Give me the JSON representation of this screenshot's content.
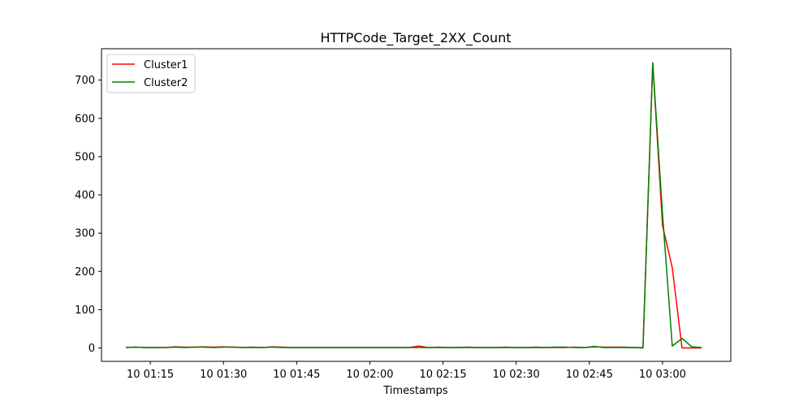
{
  "chart_data": {
    "type": "line",
    "title": "HTTPCode_Target_2XX_Count",
    "xlabel": "Timestamps",
    "ylabel": "",
    "x": [
      "01:10",
      "01:12",
      "01:14",
      "01:16",
      "01:18",
      "01:20",
      "01:22",
      "01:24",
      "01:26",
      "01:28",
      "01:30",
      "01:32",
      "01:34",
      "01:36",
      "01:38",
      "01:40",
      "01:42",
      "01:44",
      "01:46",
      "01:48",
      "01:50",
      "01:52",
      "01:54",
      "01:56",
      "01:58",
      "02:00",
      "02:02",
      "02:04",
      "02:06",
      "02:08",
      "02:10",
      "02:12",
      "02:14",
      "02:16",
      "02:18",
      "02:20",
      "02:22",
      "02:24",
      "02:26",
      "02:28",
      "02:30",
      "02:32",
      "02:34",
      "02:36",
      "02:38",
      "02:40",
      "02:42",
      "02:44",
      "02:46",
      "02:48",
      "02:50",
      "02:52",
      "02:54",
      "02:56",
      "02:58",
      "03:00",
      "03:02",
      "03:04",
      "03:06",
      "03:08"
    ],
    "xticks": [
      "10 01:15",
      "10 01:30",
      "10 01:45",
      "10 02:00",
      "10 02:15",
      "10 02:30",
      "10 02:45",
      "10 03:00"
    ],
    "yticks": [
      0,
      100,
      200,
      300,
      400,
      500,
      600,
      700
    ],
    "ylim": [
      -35,
      782
    ],
    "legend_position": "upper-left",
    "series": [
      {
        "name": "Cluster1",
        "color": "#ff0000",
        "values": [
          1,
          2,
          1,
          1,
          1,
          3,
          2,
          2,
          3,
          2,
          3,
          2,
          1,
          2,
          1,
          3,
          2,
          1,
          1,
          1,
          1,
          1,
          1,
          1,
          1,
          1,
          1,
          1,
          1,
          1,
          5,
          1,
          2,
          1,
          1,
          2,
          1,
          1,
          1,
          2,
          1,
          1,
          2,
          1,
          1,
          1,
          2,
          1,
          3,
          2,
          2,
          2,
          1,
          1,
          745,
          320,
          210,
          0,
          0,
          0
        ]
      },
      {
        "name": "Cluster2",
        "color": "#008000",
        "values": [
          1,
          2,
          1,
          1,
          1,
          2,
          1,
          2,
          2,
          1,
          2,
          2,
          1,
          1,
          1,
          2,
          1,
          1,
          1,
          1,
          1,
          1,
          1,
          1,
          1,
          1,
          1,
          1,
          1,
          1,
          1,
          1,
          1,
          1,
          1,
          1,
          1,
          1,
          1,
          1,
          1,
          1,
          1,
          1,
          2,
          2,
          1,
          1,
          4,
          1,
          1,
          1,
          1,
          0,
          745,
          350,
          5,
          25,
          3,
          1
        ]
      }
    ]
  }
}
